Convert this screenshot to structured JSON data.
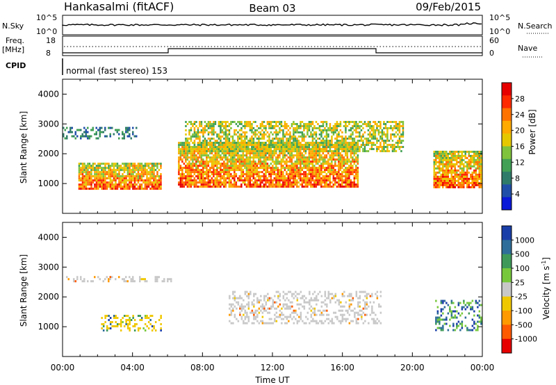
{
  "header": {
    "station": "Hankasalmi (fitACF)",
    "beam": "Beam 03",
    "date": "09/Feb/2015"
  },
  "top_panels": {
    "nsky_label": "N.Sky",
    "nsky_ticks": [
      "10^5",
      "10^0"
    ],
    "nsearch_label": "N.Search",
    "nsearch_ticks": [
      "10^5",
      "10^0"
    ],
    "freq_label_line1": "Freq.",
    "freq_label_line2": "[MHz]",
    "freq_ticks": [
      "18",
      "8"
    ],
    "nave_label": "Nave",
    "nave_ticks": [
      "60",
      "0"
    ],
    "cpid_label": "CPID",
    "cpid_text": "normal (fast stereo) 153"
  },
  "chart_data": [
    {
      "type": "heatmap",
      "name": "power",
      "ylabel": "Slant Range [km]",
      "ylim": [
        0,
        4500
      ],
      "yticks": [
        1000,
        2000,
        3000,
        4000
      ],
      "xlim": [
        "00:00",
        "24:00"
      ],
      "colorbar": {
        "label": "Power [dB]",
        "tick_labels": [
          "28",
          "24",
          "20",
          "16",
          "12",
          "8",
          "4"
        ],
        "colors": [
          "#e60000",
          "#ff2a00",
          "#ff7300",
          "#ffaa00",
          "#e6c800",
          "#7fc23c",
          "#41a055",
          "#2f7b6a",
          "#1f4ea8",
          "#0a18d8"
        ]
      },
      "echo_regions": [
        {
          "t0": 0.9,
          "t1": 5.6,
          "r0": 800,
          "r1": 1700,
          "level": "strong"
        },
        {
          "t0": 6.6,
          "t1": 16.9,
          "r0": 900,
          "r1": 2400,
          "level": "strong"
        },
        {
          "t0": 0.0,
          "t1": 4.2,
          "r0": 2500,
          "r1": 2900,
          "level": "weak"
        },
        {
          "t0": 7.0,
          "t1": 19.5,
          "r0": 2100,
          "r1": 3100,
          "level": "medium"
        },
        {
          "t0": 21.2,
          "t1": 24.0,
          "r0": 900,
          "r1": 2100,
          "level": "strong"
        }
      ]
    },
    {
      "type": "heatmap",
      "name": "velocity",
      "ylabel": "Slant Range [km]",
      "ylim": [
        0,
        4500
      ],
      "yticks": [
        1000,
        2000,
        3000,
        4000
      ],
      "xlabel": "Time UT",
      "xticks": [
        "00:00",
        "04:00",
        "08:00",
        "12:00",
        "16:00",
        "20:00",
        "00:00"
      ],
      "colorbar": {
        "label": "Velocity [m s^-1]",
        "tick_labels": [
          "1000",
          "500",
          "100",
          "25",
          "-25",
          "-100",
          "-500",
          "-1000"
        ],
        "colors": [
          "#1a3ea8",
          "#2f6e9a",
          "#3f9a5a",
          "#78c83c",
          "#c8c8c8",
          "#f0c800",
          "#ff9a00",
          "#ff5a00",
          "#e60000"
        ]
      },
      "echo_regions": [
        {
          "t0": 0.0,
          "t1": 6.2,
          "r0": 2500,
          "r1": 2700,
          "level": "grey"
        },
        {
          "t0": 2.2,
          "t1": 5.6,
          "r0": 900,
          "r1": 1400,
          "level": "positive"
        },
        {
          "t0": 9.5,
          "t1": 18.2,
          "r0": 1100,
          "r1": 2200,
          "level": "grey"
        },
        {
          "t0": 21.3,
          "t1": 24.0,
          "r0": 900,
          "r1": 1900,
          "level": "mixed"
        }
      ]
    }
  ]
}
